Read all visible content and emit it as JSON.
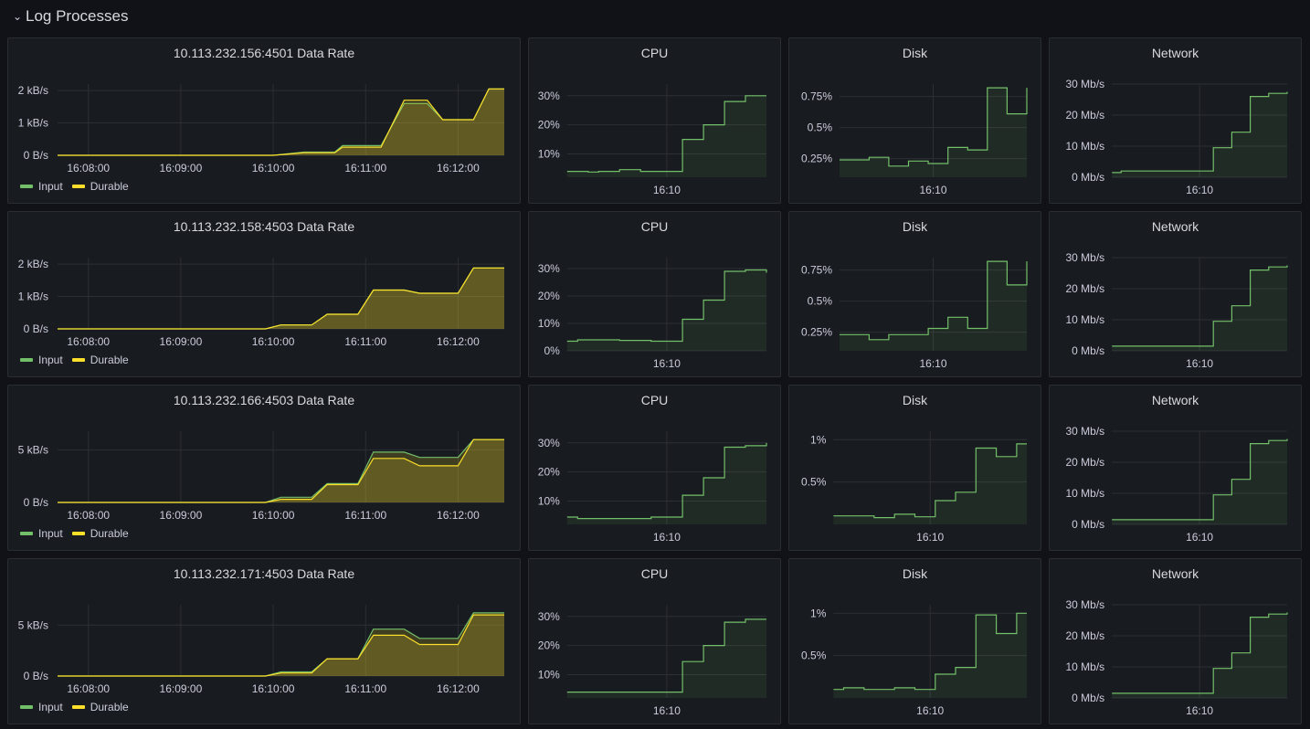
{
  "row": {
    "title": "Log Processes"
  },
  "colors": {
    "input": "#73bf69",
    "durable": "#fade2a",
    "grid": "#2c2f35",
    "fill_green": "#73bf69",
    "fill_yellow": "#fade2a"
  },
  "rows": [
    {
      "rate": {
        "title": "10.113.232.156:4501 Data Rate",
        "y_ticks": [
          "0 B/s",
          "1 kB/s",
          "2 kB/s"
        ],
        "y_max": 2.2,
        "x_ticks": [
          "16:08:00",
          "16:09:00",
          "16:10:00",
          "16:11:00",
          "16:12:00"
        ],
        "legend": [
          "Input",
          "Durable"
        ],
        "chart_data": {
          "type": "line",
          "x": [
            "16:07:40",
            "16:10:00",
            "16:10:20",
            "16:10:40",
            "16:10:45",
            "16:11:10",
            "16:11:25",
            "16:11:40",
            "16:11:50",
            "16:12:10",
            "16:12:20",
            "16:12:30"
          ],
          "series": [
            {
              "name": "Input",
              "values": [
                0,
                0,
                0.1,
                0.1,
                0.3,
                0.3,
                1.6,
                1.6,
                1.1,
                1.1,
                2.05,
                2.05
              ]
            },
            {
              "name": "Durable",
              "values": [
                0,
                0,
                0.08,
                0.08,
                0.25,
                0.25,
                1.7,
                1.7,
                1.1,
                1.1,
                2.05,
                2.05
              ]
            }
          ]
        }
      },
      "cpu": {
        "title": "CPU",
        "y_ticks": [
          "10%",
          "20%",
          "30%"
        ],
        "y_min": 2,
        "y_max": 34,
        "x_tick": "16:10",
        "values": [
          4,
          4,
          3.8,
          4,
          4,
          4.6,
          4.6,
          4,
          4,
          4,
          4,
          15,
          15,
          20,
          20,
          28,
          28,
          30,
          30,
          30
        ]
      },
      "disk": {
        "title": "Disk",
        "y_ticks": [
          "0.25%",
          "0.5%",
          "0.75%"
        ],
        "y_tick_vals": [
          0.25,
          0.5,
          0.75
        ],
        "y_min": 0.1,
        "y_max": 0.85,
        "x_tick": "16:10",
        "values": [
          0.24,
          0.24,
          0.24,
          0.26,
          0.26,
          0.19,
          0.19,
          0.23,
          0.23,
          0.21,
          0.21,
          0.34,
          0.34,
          0.32,
          0.32,
          0.82,
          0.82,
          0.61,
          0.61,
          0.82
        ]
      },
      "net": {
        "title": "Network",
        "y_ticks": [
          "0 Mb/s",
          "10 Mb/s",
          "20 Mb/s",
          "30 Mb/s"
        ],
        "y_tick_vals": [
          0,
          10,
          20,
          30
        ],
        "y_min": 0,
        "y_max": 30,
        "x_tick": "16:10",
        "values": [
          1.5,
          2,
          2,
          2,
          2,
          2,
          2,
          2,
          2,
          2,
          2,
          9.5,
          9.5,
          14.5,
          14.5,
          26,
          26,
          27,
          27,
          27.5
        ]
      }
    },
    {
      "rate": {
        "title": "10.113.232.158:4503 Data Rate",
        "y_ticks": [
          "0 B/s",
          "1 kB/s",
          "2 kB/s"
        ],
        "y_max": 2.2,
        "x_ticks": [
          "16:08:00",
          "16:09:00",
          "16:10:00",
          "16:11:00",
          "16:12:00"
        ],
        "legend": [
          "Input",
          "Durable"
        ],
        "chart_data": {
          "type": "line",
          "x": [
            "16:07:40",
            "16:09:55",
            "16:10:05",
            "16:10:25",
            "16:10:35",
            "16:10:55",
            "16:11:05",
            "16:11:25",
            "16:11:35",
            "16:12:00",
            "16:12:10",
            "16:12:30"
          ],
          "series": [
            {
              "name": "Input",
              "values": [
                0,
                0,
                0.12,
                0.12,
                0.45,
                0.45,
                1.2,
                1.2,
                1.1,
                1.1,
                1.88,
                1.88
              ]
            },
            {
              "name": "Durable",
              "values": [
                0,
                0,
                0.12,
                0.12,
                0.45,
                0.45,
                1.2,
                1.2,
                1.1,
                1.1,
                1.88,
                1.88
              ]
            }
          ]
        }
      },
      "cpu": {
        "title": "CPU",
        "y_ticks": [
          "0%",
          "10%",
          "20%",
          "30%"
        ],
        "y_tick_vals": [
          0,
          10,
          20,
          30
        ],
        "y_min": 0,
        "y_max": 34,
        "x_tick": "16:10",
        "values": [
          3.5,
          4,
          4,
          4,
          4,
          3.8,
          3.8,
          3.8,
          3.5,
          3.5,
          3.5,
          11.5,
          11.5,
          18.5,
          18.5,
          29,
          29,
          29.5,
          29.5,
          28.5
        ]
      },
      "disk": {
        "title": "Disk",
        "y_ticks": [
          "0.25%",
          "0.5%",
          "0.75%"
        ],
        "y_tick_vals": [
          0.25,
          0.5,
          0.75
        ],
        "y_min": 0.1,
        "y_max": 0.85,
        "x_tick": "16:10",
        "values": [
          0.23,
          0.23,
          0.23,
          0.19,
          0.19,
          0.23,
          0.23,
          0.23,
          0.23,
          0.28,
          0.28,
          0.37,
          0.37,
          0.28,
          0.28,
          0.82,
          0.82,
          0.63,
          0.63,
          0.82
        ]
      },
      "net": {
        "title": "Network",
        "y_ticks": [
          "0 Mb/s",
          "10 Mb/s",
          "20 Mb/s",
          "30 Mb/s"
        ],
        "y_tick_vals": [
          0,
          10,
          20,
          30
        ],
        "y_min": 0,
        "y_max": 30,
        "x_tick": "16:10",
        "values": [
          1.5,
          1.5,
          1.5,
          1.5,
          1.5,
          1.5,
          1.5,
          1.5,
          1.5,
          1.5,
          1.5,
          9.5,
          9.5,
          14.5,
          14.5,
          26,
          26,
          27,
          27,
          27.5
        ]
      }
    },
    {
      "rate": {
        "title": "10.113.232.166:4503 Data Rate",
        "y_ticks": [
          "0 B/s",
          "5 kB/s"
        ],
        "y_max": 6.8,
        "x_ticks": [
          "16:08:00",
          "16:09:00",
          "16:10:00",
          "16:11:00",
          "16:12:00"
        ],
        "legend": [
          "Input",
          "Durable"
        ],
        "chart_data": {
          "type": "line",
          "x": [
            "16:07:40",
            "16:09:55",
            "16:10:05",
            "16:10:25",
            "16:10:35",
            "16:10:55",
            "16:11:05",
            "16:11:25",
            "16:11:35",
            "16:12:00",
            "16:12:10",
            "16:12:30"
          ],
          "series": [
            {
              "name": "Input",
              "values": [
                0,
                0,
                0.5,
                0.5,
                1.8,
                1.8,
                4.8,
                4.8,
                4.3,
                4.3,
                6.0,
                6.0
              ]
            },
            {
              "name": "Durable",
              "values": [
                0,
                0,
                0.3,
                0.3,
                1.7,
                1.7,
                4.2,
                4.2,
                3.5,
                3.5,
                6.0,
                6.0
              ]
            }
          ]
        }
      },
      "cpu": {
        "title": "CPU",
        "y_ticks": [
          "10%",
          "20%",
          "30%"
        ],
        "y_tick_vals": [
          10,
          20,
          30
        ],
        "y_min": 2,
        "y_max": 34,
        "x_tick": "16:10",
        "values": [
          4.5,
          4,
          4,
          4,
          4,
          4,
          4,
          4,
          4.5,
          4.5,
          4.5,
          12,
          12,
          18,
          18,
          28.5,
          28.5,
          29,
          29,
          30
        ]
      },
      "disk": {
        "title": "Disk",
        "y_ticks": [
          "0.5%",
          "1%"
        ],
        "y_tick_vals": [
          0.5,
          1
        ],
        "y_min": 0,
        "y_max": 1.1,
        "x_tick": "16:10",
        "values": [
          0.1,
          0.1,
          0.1,
          0.1,
          0.08,
          0.08,
          0.12,
          0.12,
          0.09,
          0.09,
          0.28,
          0.28,
          0.38,
          0.38,
          0.9,
          0.9,
          0.8,
          0.8,
          0.95,
          0.95
        ]
      },
      "net": {
        "title": "Network",
        "y_ticks": [
          "0 Mb/s",
          "10 Mb/s",
          "20 Mb/s",
          "30 Mb/s"
        ],
        "y_tick_vals": [
          0,
          10,
          20,
          30
        ],
        "y_min": 0,
        "y_max": 30,
        "x_tick": "16:10",
        "values": [
          1.5,
          1.5,
          1.5,
          1.5,
          1.5,
          1.5,
          1.5,
          1.5,
          1.5,
          1.5,
          1.5,
          9.5,
          9.5,
          14.5,
          14.5,
          26,
          26,
          27,
          27,
          27.5
        ]
      }
    },
    {
      "rate": {
        "title": "10.113.232.171:4503 Data Rate",
        "y_ticks": [
          "0 B/s",
          "5 kB/s"
        ],
        "y_max": 7.0,
        "x_ticks": [
          "16:08:00",
          "16:09:00",
          "16:10:00",
          "16:11:00",
          "16:12:00"
        ],
        "legend": [
          "Input",
          "Durable"
        ],
        "chart_data": {
          "type": "line",
          "x": [
            "16:07:40",
            "16:09:55",
            "16:10:05",
            "16:10:25",
            "16:10:35",
            "16:10:55",
            "16:11:05",
            "16:11:25",
            "16:11:35",
            "16:12:00",
            "16:12:10",
            "16:12:30"
          ],
          "series": [
            {
              "name": "Input",
              "values": [
                0,
                0,
                0.4,
                0.4,
                1.7,
                1.7,
                4.6,
                4.6,
                3.7,
                3.7,
                6.2,
                6.2
              ]
            },
            {
              "name": "Durable",
              "values": [
                0,
                0,
                0.3,
                0.3,
                1.7,
                1.7,
                4.0,
                4.0,
                3.1,
                3.1,
                6.0,
                6.0
              ]
            }
          ]
        }
      },
      "cpu": {
        "title": "CPU",
        "y_ticks": [
          "10%",
          "20%",
          "30%"
        ],
        "y_tick_vals": [
          10,
          20,
          30
        ],
        "y_min": 2,
        "y_max": 34,
        "x_tick": "16:10",
        "values": [
          4,
          4,
          4,
          4,
          4,
          4,
          4,
          4,
          4,
          4,
          4,
          14.5,
          14.5,
          20,
          20,
          28,
          28,
          29,
          29,
          29
        ]
      },
      "disk": {
        "title": "Disk",
        "y_ticks": [
          "0.5%",
          "1%"
        ],
        "y_tick_vals": [
          0.5,
          1
        ],
        "y_min": 0,
        "y_max": 1.1,
        "x_tick": "16:10",
        "values": [
          0.1,
          0.12,
          0.12,
          0.1,
          0.1,
          0.1,
          0.12,
          0.12,
          0.1,
          0.1,
          0.28,
          0.28,
          0.36,
          0.36,
          0.98,
          0.98,
          0.76,
          0.76,
          1.0,
          1.0
        ]
      },
      "net": {
        "title": "Network",
        "y_ticks": [
          "0 Mb/s",
          "10 Mb/s",
          "20 Mb/s",
          "30 Mb/s"
        ],
        "y_tick_vals": [
          0,
          10,
          20,
          30
        ],
        "y_min": 0,
        "y_max": 30,
        "x_tick": "16:10",
        "values": [
          1.5,
          1.5,
          1.5,
          1.5,
          1.5,
          1.5,
          1.5,
          1.5,
          1.5,
          1.5,
          1.5,
          9.5,
          9.5,
          14.5,
          14.5,
          26,
          26,
          27,
          27,
          27.5
        ]
      }
    }
  ]
}
